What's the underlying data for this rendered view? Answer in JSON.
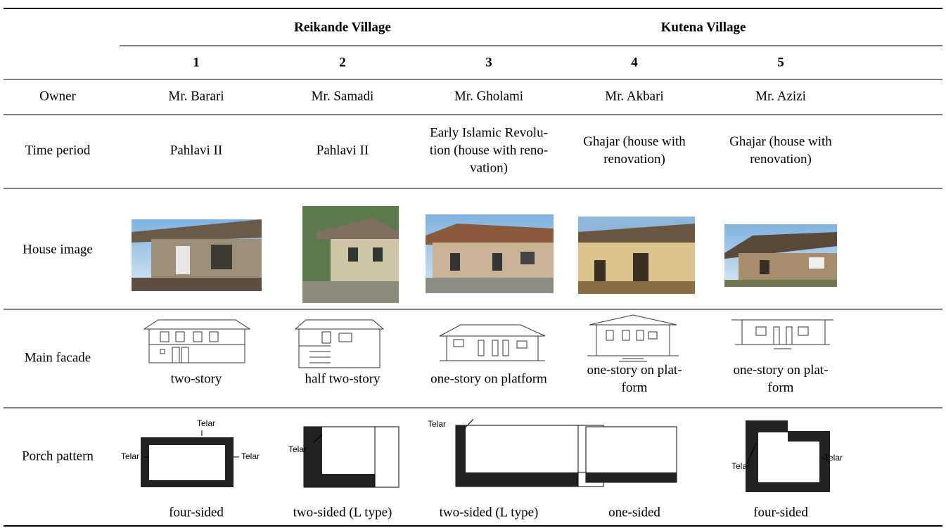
{
  "header": {
    "groups": [
      {
        "label": "Reikande Village"
      },
      {
        "label": "Kutena Village"
      }
    ],
    "numbers": [
      "1",
      "2",
      "3",
      "4",
      "5"
    ]
  },
  "rows": [
    {
      "label": "Owner",
      "cells": [
        [
          "Mr. Barari"
        ],
        [
          "Mr. Samadi"
        ],
        [
          "Mr. Gholami"
        ],
        [
          "Mr. Akbari"
        ],
        [
          "Mr. Azizi"
        ]
      ]
    },
    {
      "label": "Time period",
      "cells": [
        [
          "Pahlavi II"
        ],
        [
          "Pahlavi II"
        ],
        [
          "Early Islamic Revolu-",
          "tion (house with reno-",
          "vation)"
        ],
        [
          "Ghajar (house with",
          "renovation)"
        ],
        [
          "Ghajar (house with",
          "renovation)"
        ]
      ]
    },
    {
      "label": "House image"
    },
    {
      "label": "Main facade",
      "cells": [
        [
          "two-story"
        ],
        [
          "half two-story"
        ],
        [
          "one-story on platform"
        ],
        [
          "one-story on plat-",
          "form"
        ],
        [
          "one-story on plat-",
          "form"
        ]
      ]
    },
    {
      "label": "Porch pattern",
      "cells": [
        [
          "four-sided"
        ],
        [
          "two-sided (L type)"
        ],
        [
          "two-sided (L type)"
        ],
        [
          "one-sided"
        ],
        [
          "four-sided"
        ]
      ],
      "telar": [
        [
          "Telar",
          "Telar",
          "Telar"
        ],
        [
          "Telar"
        ],
        [
          "Telar"
        ],
        [],
        [
          "Telar",
          "Telar"
        ]
      ]
    }
  ]
}
